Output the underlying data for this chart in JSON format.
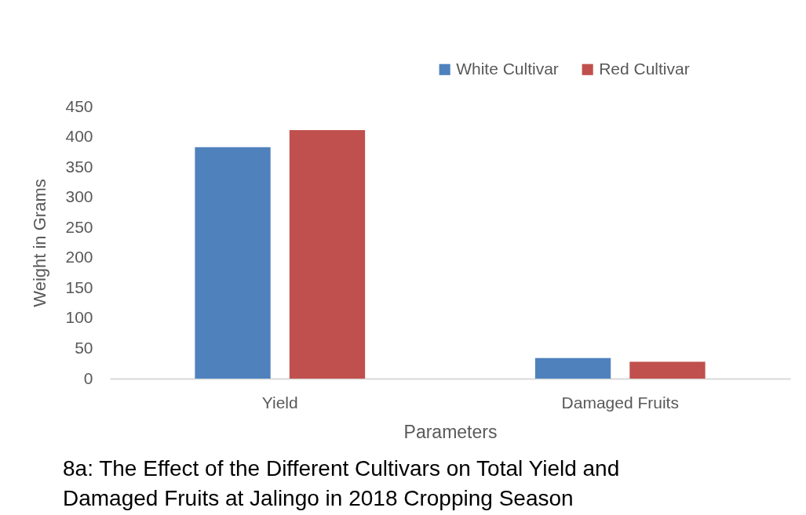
{
  "chart_data": {
    "type": "bar",
    "title": "8a: The Effect of the Different Cultivars on Total Yield and\nDamaged Fruits at Jalingo in 2018 Cropping Season",
    "xlabel": "Parameters",
    "ylabel": "Weight in Grams",
    "categories": [
      "Yield",
      "Damaged Fruits"
    ],
    "series": [
      {
        "name": "White Cultivar",
        "color": "#4f81bd",
        "values": [
          383,
          34
        ]
      },
      {
        "name": "Red Cultivar",
        "color": "#c0504d",
        "values": [
          411,
          28
        ]
      }
    ],
    "ylim": [
      0,
      450
    ],
    "yticks": [
      0,
      50,
      100,
      150,
      200,
      250,
      300,
      350,
      400,
      450
    ],
    "grid": false,
    "legend": "top right"
  }
}
